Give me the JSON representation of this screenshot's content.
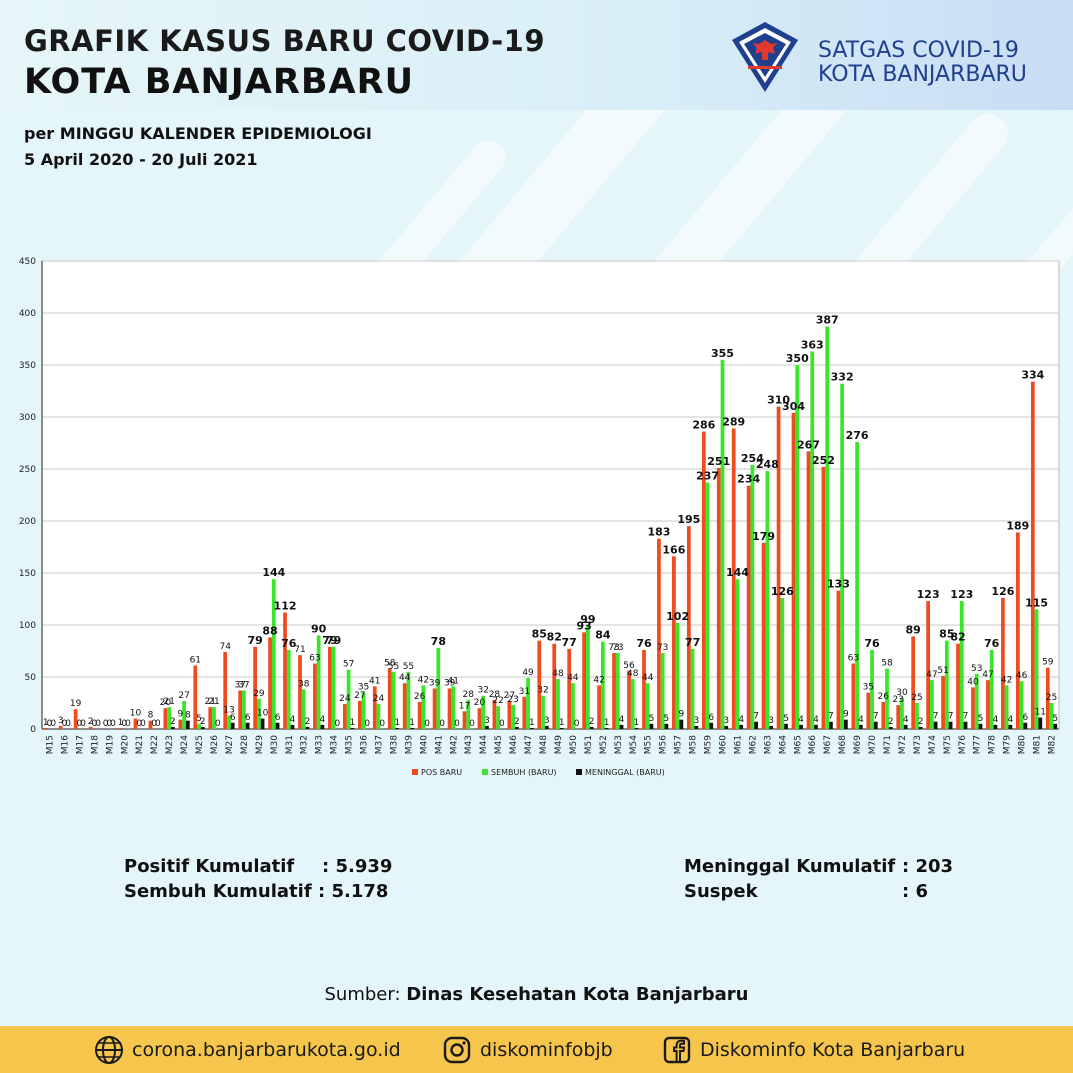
{
  "header": {
    "title_line1": "GRAFIK KASUS BARU COVID-19",
    "title_line2": "KOTA BANJARBARU",
    "subtitle_line1": "per MINGGU KALENDER EPIDEMIOLOGI",
    "subtitle_line2": "5 April 2020 - 20 Juli 2021",
    "org_line1": "SATGAS COVID-19",
    "org_line2": "KOTA BANJARBARU",
    "logo_icon": "satgas-garuda-shield-icon"
  },
  "chart_data": {
    "type": "bar",
    "ylim": [
      0,
      450
    ],
    "yticks": [
      0,
      50,
      100,
      150,
      200,
      250,
      300,
      350,
      400,
      450
    ],
    "grid": true,
    "legend_position": "bottom",
    "categories": [
      "M15",
      "M16",
      "M17",
      "M18",
      "M19",
      "M20",
      "M21",
      "M22",
      "M23",
      "M24",
      "M25",
      "M26",
      "M27",
      "M28",
      "M29",
      "M30",
      "M31",
      "M32",
      "M33",
      "M34",
      "M35",
      "M36",
      "M37",
      "M38",
      "M39",
      "M40",
      "M41",
      "M42",
      "M43",
      "M44",
      "M45",
      "M46",
      "M47",
      "M48",
      "M49",
      "M50",
      "M51",
      "M52",
      "M53",
      "M54",
      "M55",
      "M56",
      "M57",
      "M58",
      "M59",
      "M60",
      "M61",
      "M62",
      "M63",
      "M64",
      "M65",
      "M66",
      "M67",
      "M68",
      "M69",
      "M70",
      "M71",
      "M72",
      "M73",
      "M74",
      "M75",
      "M76",
      "M77",
      "M78",
      "M79",
      "M80",
      "M81",
      "M82"
    ],
    "series": [
      {
        "name": "POS BARU",
        "color": "#ee4b1f",
        "values": [
          1,
          3,
          19,
          2,
          0,
          1,
          10,
          8,
          20,
          9,
          61,
          21,
          74,
          37,
          79,
          88,
          112,
          71,
          63,
          79,
          24,
          27,
          41,
          58,
          44,
          26,
          39,
          39,
          17,
          20,
          28,
          27,
          31,
          85,
          82,
          77,
          93,
          42,
          73,
          56,
          76,
          183,
          166,
          195,
          286,
          251,
          289,
          234,
          179,
          310,
          304,
          267,
          252,
          133,
          63,
          35,
          26,
          23,
          89,
          123,
          51,
          82,
          40,
          47,
          126,
          189,
          334,
          59
        ]
      },
      {
        "name": "SEMBUH (BARU)",
        "color": "#39e629",
        "values": [
          0,
          0,
          0,
          0,
          0,
          0,
          0,
          0,
          21,
          27,
          5,
          21,
          13,
          37,
          29,
          144,
          76,
          38,
          90,
          79,
          57,
          35,
          24,
          55,
          55,
          42,
          78,
          41,
          28,
          32,
          22,
          23,
          49,
          32,
          48,
          44,
          99,
          84,
          73,
          48,
          44,
          73,
          102,
          77,
          237,
          355,
          144,
          254,
          248,
          126,
          350,
          363,
          387,
          332,
          276,
          76,
          58,
          30,
          25,
          47,
          85,
          123,
          53,
          76,
          42,
          46,
          115,
          25
        ]
      },
      {
        "name": "MENINGGAL (BARU)",
        "color": "#111111",
        "values": [
          0,
          0,
          0,
          0,
          0,
          0,
          0,
          0,
          2,
          8,
          2,
          0,
          6,
          6,
          10,
          6,
          4,
          2,
          4,
          0,
          1,
          0,
          0,
          1,
          1,
          0,
          0,
          0,
          0,
          3,
          0,
          2,
          1,
          3,
          1,
          0,
          2,
          1,
          4,
          1,
          5,
          5,
          9,
          3,
          6,
          3,
          4,
          7,
          3,
          5,
          4,
          4,
          7,
          9,
          4,
          7,
          2,
          4,
          2,
          7,
          7,
          7,
          5,
          4,
          4,
          6,
          11,
          5
        ]
      }
    ]
  },
  "stats": {
    "positif_label": "Positif Kumulatif",
    "positif_value": ": 5.939",
    "sembuh_label": "Sembuh Kumulatif",
    "sembuh_value": ": 5.178",
    "meninggal_label": "Meninggal Kumulatif",
    "meninggal_value": ": 203",
    "suspek_label": "Suspek",
    "suspek_value": ": 6"
  },
  "source": {
    "prefix": "Sumber:",
    "name": "Dinas Kesehatan Kota Banjarbaru"
  },
  "footer": {
    "website": "corona.banjarbarukota.go.id",
    "website_icon": "globe-icon",
    "instagram": "diskominfobjb",
    "instagram_icon": "instagram-icon",
    "facebook": "Diskominfo Kota Banjarbaru",
    "facebook_icon": "facebook-icon"
  }
}
